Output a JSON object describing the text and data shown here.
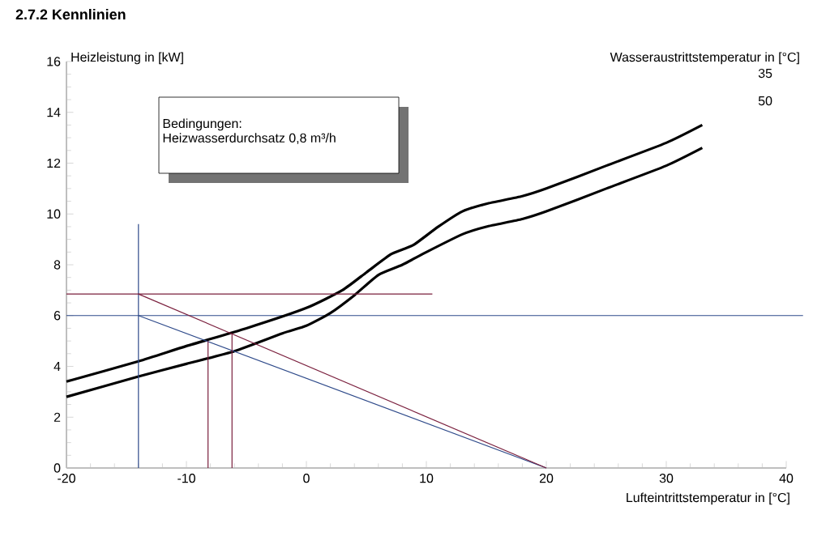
{
  "chart_data": {
    "type": "line",
    "title": "2.7.2 Kennlinien",
    "xlabel": "Lufteintrittstemperatur in [°C]",
    "ylabel": "Heizleistung in [kW]",
    "legend_title": "Wasseraustrittstemperatur in [°C]",
    "annotations": [
      "Bedingungen:",
      "Heizwasserdurchsatz 0,8 m³/h"
    ],
    "xlim": [
      -20,
      40
    ],
    "xticks": [
      -20,
      -10,
      0,
      10,
      20,
      30,
      40
    ],
    "ylim": [
      0,
      16
    ],
    "yticks": [
      0,
      2,
      4,
      6,
      8,
      10,
      12,
      14,
      16
    ],
    "grid": false,
    "legend": "top right",
    "marker": "none",
    "line_style": "solid",
    "ref_lines": [
      {
        "axis": "y",
        "value": 6,
        "color": "#2e4a8a"
      }
    ],
    "series": [
      {
        "name": "35",
        "color": "#000000",
        "x": [
          -20,
          -14,
          -10,
          -5,
          0,
          3,
          5,
          7,
          8,
          9,
          11,
          13,
          15,
          18,
          20,
          25,
          30,
          33
        ],
        "values": [
          3.4,
          4.2,
          4.8,
          5.5,
          6.3,
          7.0,
          7.7,
          8.4,
          8.6,
          8.8,
          9.5,
          10.1,
          10.4,
          10.7,
          11.0,
          11.9,
          12.8,
          13.5
        ]
      },
      {
        "name": "50",
        "color": "#000000",
        "x": [
          -20,
          -14,
          -10,
          -6,
          -2,
          0,
          2,
          4,
          6,
          8,
          10,
          13,
          15,
          18,
          20,
          25,
          30,
          33
        ],
        "values": [
          2.8,
          3.6,
          4.1,
          4.6,
          5.3,
          5.6,
          6.1,
          6.8,
          7.6,
          8.0,
          8.5,
          9.2,
          9.5,
          9.8,
          10.1,
          11.0,
          11.9,
          12.6
        ]
      },
      {
        "color": "#2e4a8a",
        "x": [
          -14,
          -14
        ],
        "values": [
          0,
          9.6
        ]
      },
      {
        "color": "#2e4a8a",
        "x": [
          -14,
          20
        ],
        "values": [
          6,
          0
        ]
      },
      {
        "color": "#7a1f3d",
        "x": [
          -20,
          10.5
        ],
        "values": [
          6.85,
          6.85
        ]
      },
      {
        "color": "#7a1f3d",
        "x": [
          -14,
          20
        ],
        "values": [
          6.85,
          0
        ]
      },
      {
        "color": "#7a1f3d",
        "x": [
          -8.2,
          -8.2
        ],
        "values": [
          0,
          5.0
        ]
      },
      {
        "color": "#7a1f3d",
        "x": [
          -6.2,
          -6.2
        ],
        "values": [
          0,
          5.3
        ]
      }
    ]
  }
}
